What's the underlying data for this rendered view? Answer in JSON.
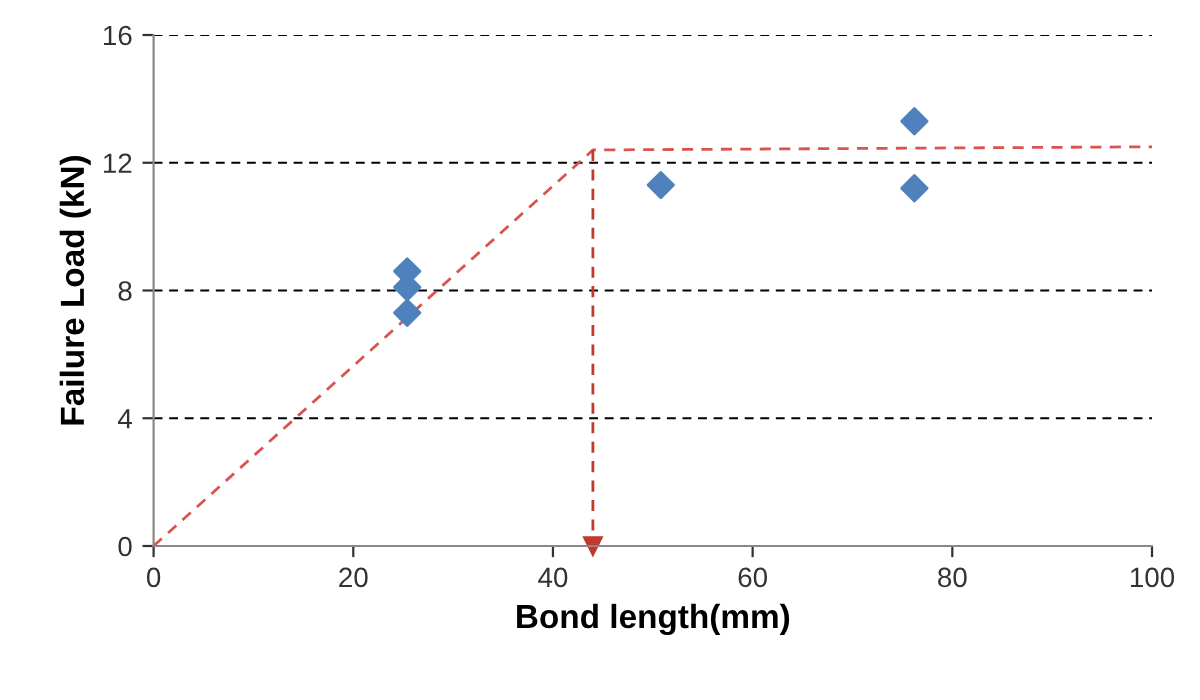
{
  "chart_data": {
    "type": "scatter",
    "xlabel": "Bond length(mm)",
    "ylabel": "Failure Load (kN)",
    "xlim": [
      0,
      100
    ],
    "xticks": [
      0,
      20,
      40,
      60,
      80,
      100
    ],
    "ylim": [
      0,
      16
    ],
    "yticks": [
      0,
      4,
      8,
      12,
      16
    ],
    "grid": "y",
    "legend": false,
    "series": [
      {
        "color": "#4f81bd",
        "marker": "diamond",
        "x": [
          25.4,
          25.4,
          25.4,
          50.8,
          76.2,
          76.2
        ],
        "values": [
          8.6,
          8.1,
          7.3,
          11.3,
          13.3,
          11.2
        ]
      },
      {
        "type": "line",
        "color": "#d9534f",
        "line_style": "dashed",
        "marker": "none",
        "x": [
          0,
          44,
          100
        ],
        "values": [
          0,
          12.4,
          12.5
        ]
      },
      {
        "type": "line",
        "color": "#c0392b",
        "line_style": "dashed",
        "marker": "triangle",
        "x": [
          44,
          44
        ],
        "values": [
          12.4,
          0
        ]
      }
    ]
  }
}
